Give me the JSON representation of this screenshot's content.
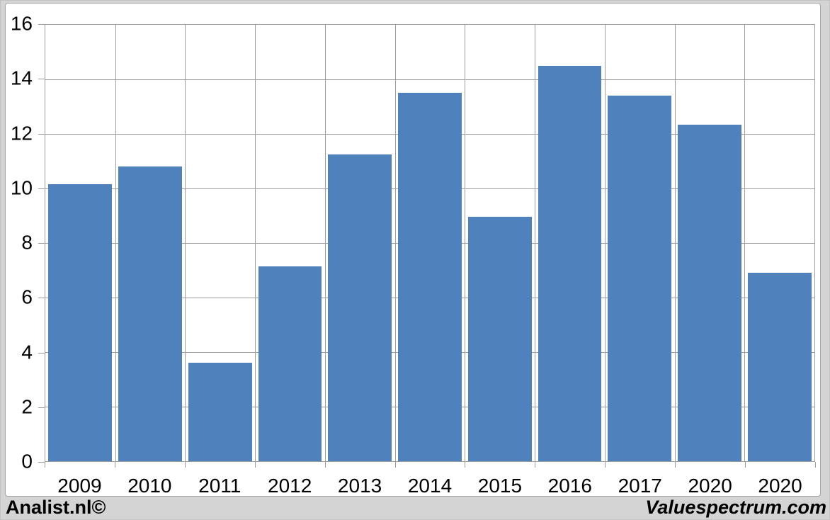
{
  "footer": {
    "left_brand": "Analist.nl©",
    "right_brand": "Valuespectrum.com"
  },
  "chart_data": {
    "type": "bar",
    "title": "",
    "xlabel": "",
    "ylabel": "",
    "categories": [
      "2009",
      "2010",
      "2011",
      "2012",
      "2013",
      "2014",
      "2015",
      "2016",
      "2017",
      "2020",
      "2020"
    ],
    "values": [
      10.15,
      10.8,
      3.6,
      7.15,
      11.25,
      13.5,
      8.95,
      14.5,
      13.4,
      12.35,
      6.9
    ],
    "ylim": [
      0,
      16
    ],
    "ytick_step": 2,
    "yticks": [
      0,
      2,
      4,
      6,
      8,
      10,
      12,
      14,
      16
    ],
    "grid": true,
    "legend_position": "none",
    "bar_color": "#4f81bd",
    "gridline_color": "#9d9d9d",
    "plot_background": "#ffffff",
    "page_background": "#d4d4d4"
  }
}
